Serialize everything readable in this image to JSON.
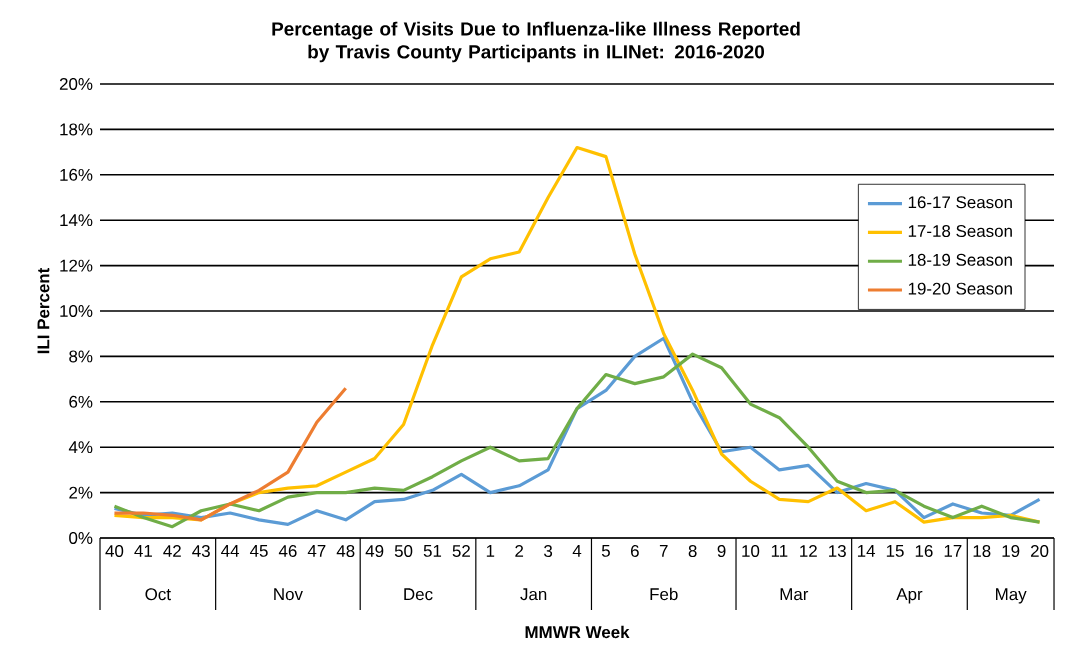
{
  "chart_data": {
    "type": "line",
    "title": "Percentage of Visits Due to Influenza-like Illness Reported by Travis County Participants in ILINet: 2016-2020",
    "xlabel": "MMWR Week",
    "ylabel": "ILI Percent",
    "categories": [
      "40",
      "41",
      "42",
      "43",
      "44",
      "45",
      "46",
      "47",
      "48",
      "49",
      "50",
      "51",
      "52",
      "1",
      "2",
      "3",
      "4",
      "5",
      "6",
      "7",
      "8",
      "9",
      "10",
      "11",
      "12",
      "13",
      "14",
      "15",
      "16",
      "17",
      "18",
      "19",
      "20"
    ],
    "annotations": [
      "Oct",
      "Nov",
      "Dec",
      "Jan",
      "Feb",
      "Mar",
      "Apr",
      "May"
    ],
    "series": [
      {
        "name": "16-17 Season",
        "color": "#5b9bd5",
        "values": [
          1.3,
          1.0,
          1.1,
          0.9,
          1.1,
          0.8,
          0.6,
          1.2,
          0.8,
          1.6,
          1.7,
          2.1,
          2.8,
          2.0,
          2.3,
          3.0,
          5.7,
          6.5,
          8.0,
          8.8,
          6.0,
          3.8,
          4.0,
          3.0,
          3.2,
          2.0,
          2.4,
          2.1,
          0.9,
          1.5,
          1.1,
          1.0,
          1.7
        ]
      },
      {
        "name": "17-18 Season",
        "color": "#ffc000",
        "values": [
          1.0,
          0.9,
          0.9,
          0.8,
          1.5,
          2.0,
          2.2,
          2.3,
          2.9,
          3.5,
          5.0,
          8.5,
          11.5,
          12.3,
          12.6,
          15.0,
          17.2,
          16.8,
          12.5,
          9.0,
          6.5,
          3.7,
          2.5,
          1.7,
          1.6,
          2.2,
          1.2,
          1.6,
          0.7,
          0.9,
          0.9,
          1.0,
          0.7
        ]
      },
      {
        "name": "18-19 Season",
        "color": "#70ad47",
        "values": [
          1.4,
          0.9,
          0.5,
          1.2,
          1.5,
          1.2,
          1.8,
          2.0,
          2.0,
          2.2,
          2.1,
          2.7,
          3.4,
          4.0,
          3.4,
          3.5,
          5.7,
          7.2,
          6.8,
          7.1,
          8.1,
          7.5,
          5.9,
          5.3,
          4.0,
          2.5,
          2.0,
          2.1,
          1.4,
          0.9,
          1.4,
          0.9,
          0.7
        ]
      },
      {
        "name": "19-20 Season",
        "color": "#ed7d31",
        "values": [
          1.1,
          1.1,
          1.0,
          0.8,
          1.5,
          2.1,
          2.9,
          5.1,
          6.6,
          null,
          null,
          null,
          null,
          null,
          null,
          null,
          null,
          null,
          null,
          null,
          null,
          null,
          null,
          null,
          null,
          null,
          null,
          null,
          null,
          null,
          null,
          null,
          null
        ]
      }
    ],
    "ylim": [
      0,
      20
    ],
    "yticks": [
      {
        "value": 0,
        "label": "0%"
      },
      {
        "value": 2,
        "label": "2%"
      },
      {
        "value": 4,
        "label": "4%"
      },
      {
        "value": 6,
        "label": "6%"
      },
      {
        "value": 8,
        "label": "8%"
      },
      {
        "value": 10,
        "label": "10%"
      },
      {
        "value": 12,
        "label": "12%"
      },
      {
        "value": 14,
        "label": "14%"
      },
      {
        "value": 16,
        "label": "16%"
      },
      {
        "value": 18,
        "label": "18%"
      },
      {
        "value": 20,
        "label": "20%"
      }
    ],
    "grid": "y",
    "legend": "top right",
    "marker": "none",
    "line_style": "solid"
  }
}
